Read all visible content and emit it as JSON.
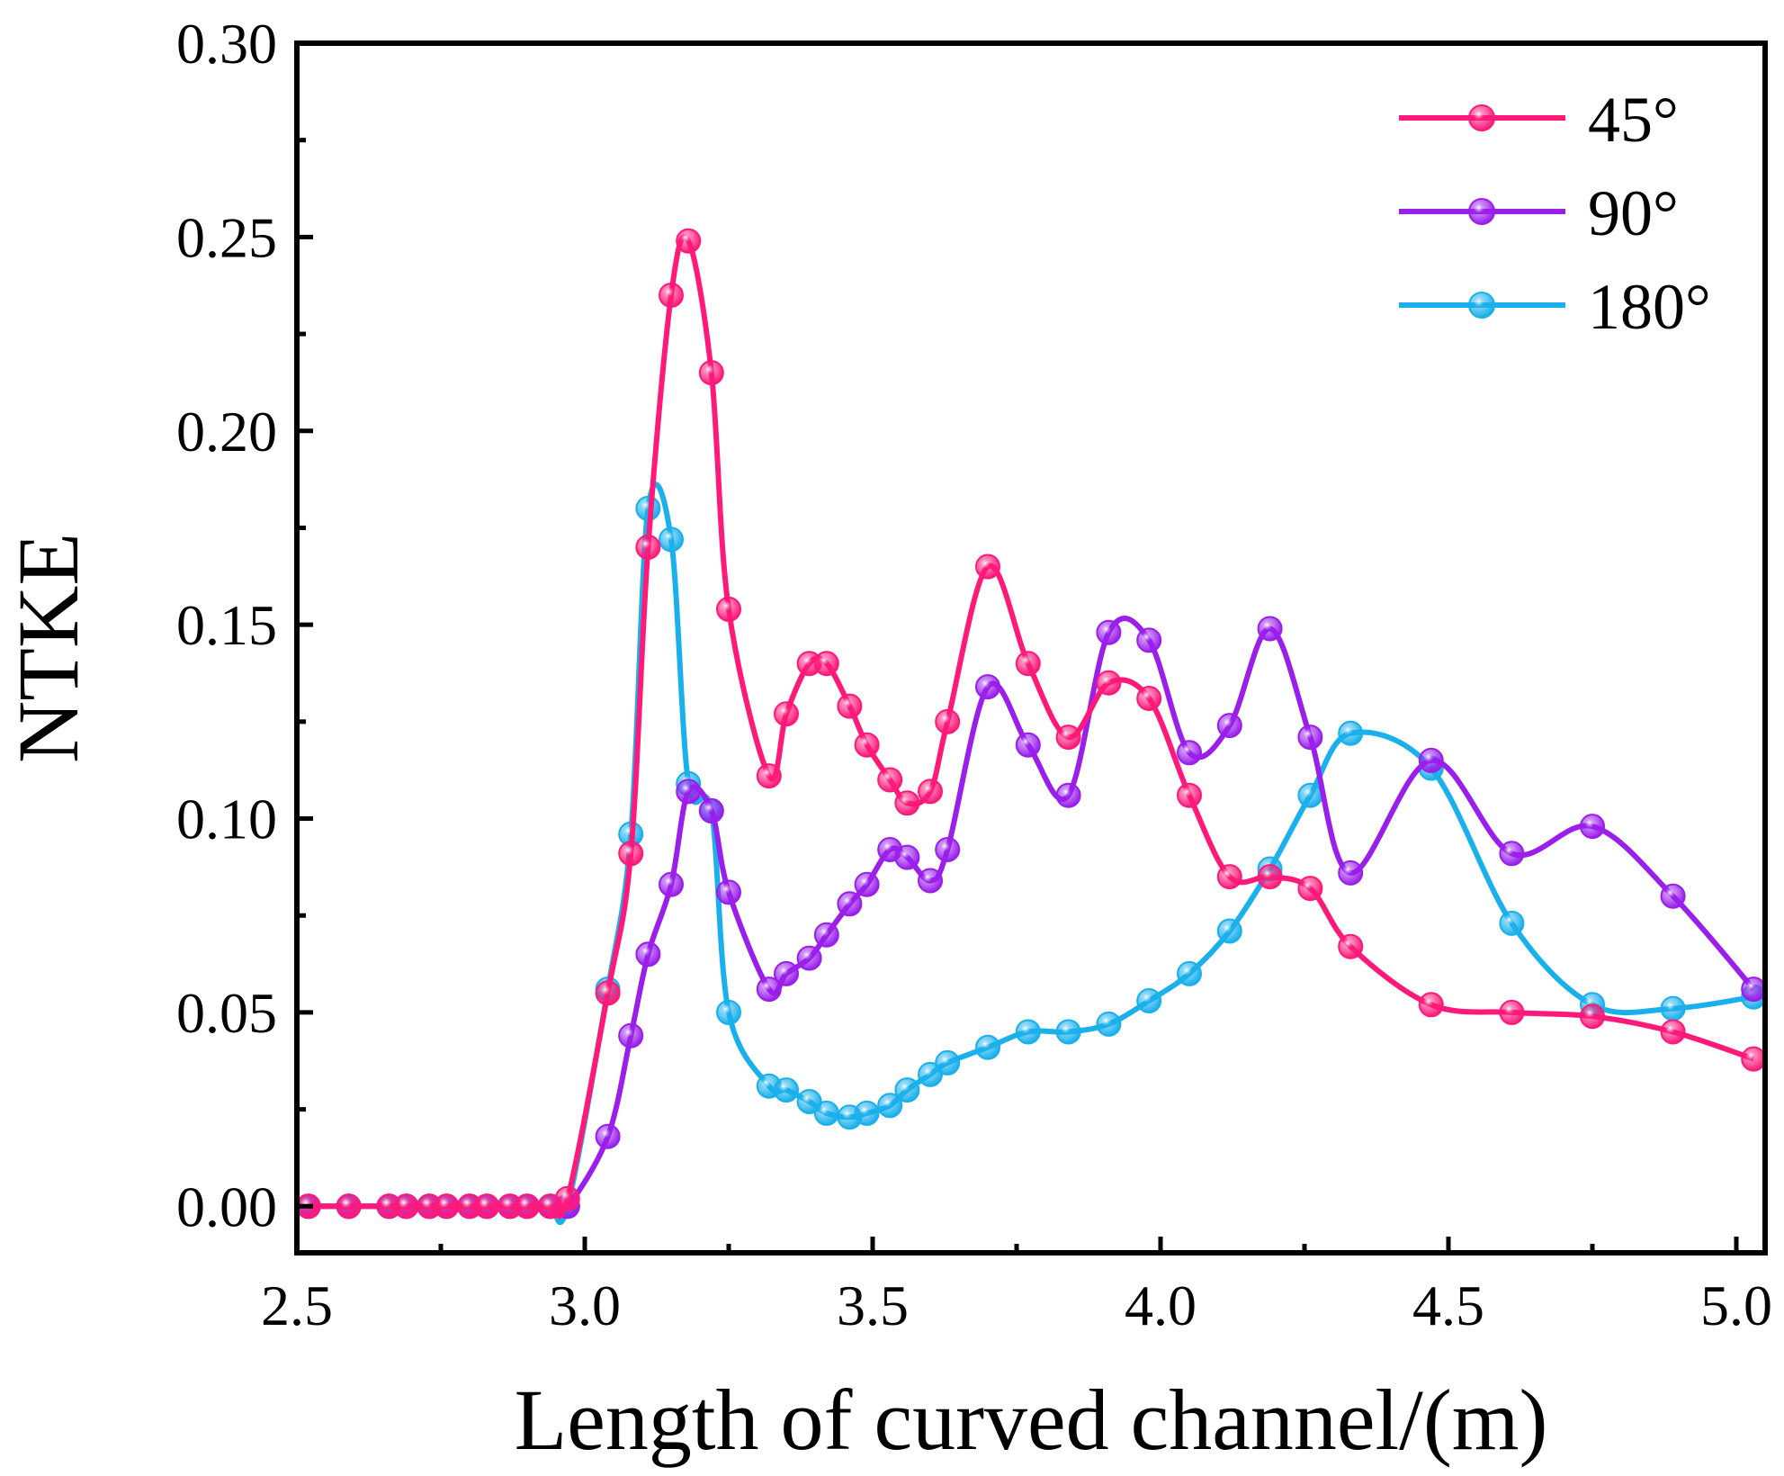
{
  "chart_data": {
    "type": "line",
    "title": "",
    "xlabel": "Length of curved channel/(m)",
    "ylabel": "NTKE",
    "xlim": [
      2.5,
      5.05
    ],
    "ylim": [
      -0.012,
      0.3
    ],
    "xticks": [
      2.5,
      3.0,
      3.5,
      4.0,
      4.5,
      5.0
    ],
    "xtick_labels": [
      "2.5",
      "3.0",
      "3.5",
      "4.0",
      "4.5",
      "5.0"
    ],
    "yticks": [
      0.0,
      0.05,
      0.1,
      0.15,
      0.2,
      0.25,
      0.3
    ],
    "ytick_labels": [
      "0.00",
      "0.05",
      "0.10",
      "0.15",
      "0.20",
      "0.25",
      "0.30"
    ],
    "legend_position": "top-right",
    "series": [
      {
        "name": "45°",
        "color": "#ff1a7a",
        "x": [
          2.52,
          2.59,
          2.66,
          2.69,
          2.73,
          2.76,
          2.8,
          2.83,
          2.87,
          2.9,
          2.94,
          2.97,
          3.04,
          3.08,
          3.11,
          3.15,
          3.18,
          3.22,
          3.25,
          3.32,
          3.35,
          3.39,
          3.42,
          3.46,
          3.49,
          3.53,
          3.56,
          3.6,
          3.63,
          3.7,
          3.77,
          3.84,
          3.91,
          3.98,
          4.05,
          4.12,
          4.19,
          4.26,
          4.33,
          4.47,
          4.61,
          4.75,
          4.89,
          5.03
        ],
        "y": [
          0.0,
          0.0,
          0.0,
          0.0,
          0.0,
          0.0,
          0.0,
          0.0,
          0.0,
          0.0,
          0.0,
          0.002,
          0.055,
          0.091,
          0.17,
          0.235,
          0.249,
          0.215,
          0.154,
          0.111,
          0.127,
          0.14,
          0.14,
          0.129,
          0.119,
          0.11,
          0.104,
          0.107,
          0.125,
          0.165,
          0.14,
          0.121,
          0.135,
          0.131,
          0.106,
          0.085,
          0.085,
          0.082,
          0.067,
          0.052,
          0.05,
          0.049,
          0.045,
          0.038
        ]
      },
      {
        "name": "90°",
        "color": "#9a1fea",
        "x": [
          2.52,
          2.59,
          2.66,
          2.69,
          2.73,
          2.76,
          2.8,
          2.83,
          2.87,
          2.9,
          2.94,
          2.97,
          3.04,
          3.08,
          3.11,
          3.15,
          3.18,
          3.22,
          3.25,
          3.32,
          3.35,
          3.39,
          3.42,
          3.46,
          3.49,
          3.53,
          3.56,
          3.6,
          3.63,
          3.7,
          3.77,
          3.84,
          3.91,
          3.98,
          4.05,
          4.12,
          4.19,
          4.26,
          4.33,
          4.47,
          4.61,
          4.75,
          4.89,
          5.03
        ],
        "y": [
          0.0,
          0.0,
          0.0,
          0.0,
          0.0,
          0.0,
          0.0,
          0.0,
          0.0,
          0.0,
          0.0,
          0.0,
          0.018,
          0.044,
          0.065,
          0.083,
          0.107,
          0.102,
          0.081,
          0.056,
          0.06,
          0.064,
          0.07,
          0.078,
          0.083,
          0.092,
          0.09,
          0.084,
          0.092,
          0.134,
          0.119,
          0.106,
          0.148,
          0.146,
          0.117,
          0.124,
          0.149,
          0.121,
          0.086,
          0.115,
          0.091,
          0.098,
          0.08,
          0.056
        ]
      },
      {
        "name": "180°",
        "color": "#1ab0ec",
        "x": [
          2.52,
          2.59,
          2.66,
          2.69,
          2.73,
          2.76,
          2.8,
          2.83,
          2.87,
          2.9,
          2.94,
          2.97,
          3.04,
          3.08,
          3.11,
          3.15,
          3.18,
          3.22,
          3.25,
          3.32,
          3.35,
          3.39,
          3.42,
          3.46,
          3.49,
          3.53,
          3.56,
          3.6,
          3.63,
          3.7,
          3.77,
          3.84,
          3.91,
          3.98,
          4.05,
          4.12,
          4.19,
          4.26,
          4.33,
          4.47,
          4.61,
          4.75,
          4.89,
          5.03
        ],
        "y": [
          0.0,
          0.0,
          0.0,
          0.0,
          0.0,
          0.0,
          0.0,
          0.0,
          0.0,
          0.0,
          0.0,
          0.0,
          0.056,
          0.096,
          0.18,
          0.172,
          0.109,
          0.102,
          0.05,
          0.031,
          0.03,
          0.027,
          0.024,
          0.023,
          0.024,
          0.026,
          0.03,
          0.034,
          0.037,
          0.041,
          0.045,
          0.045,
          0.047,
          0.053,
          0.06,
          0.071,
          0.087,
          0.106,
          0.122,
          0.113,
          0.073,
          0.052,
          0.051,
          0.054
        ]
      }
    ]
  }
}
